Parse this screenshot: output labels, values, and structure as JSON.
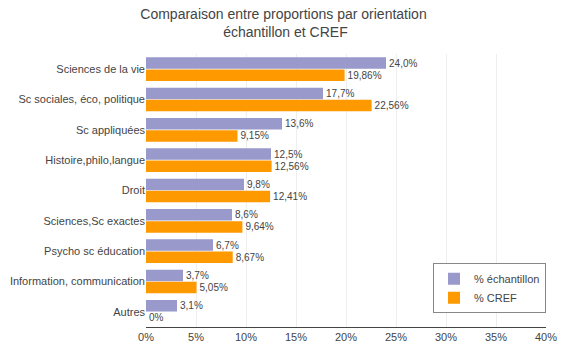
{
  "chart_data": {
    "type": "bar",
    "orientation": "horizontal",
    "title": "Comparaison entre proportions par orientation\n échantillon et CREF",
    "categories": [
      "Sciences de la vie",
      "Sc sociales, éco, politique",
      "Sc appliquées",
      "Histoire,philo,langue",
      "Droit",
      "Sciences,Sc exactes",
      "Psycho sc éducation",
      "Information, communication",
      "Autres"
    ],
    "series": [
      {
        "name": "% échantillon",
        "color": "#9999CC",
        "values": [
          24.0,
          17.7,
          13.6,
          12.5,
          9.8,
          8.6,
          6.7,
          3.7,
          3.1
        ],
        "value_labels": [
          "24,0%",
          "17,7%",
          "13,6%",
          "12,5%",
          "9,8%",
          "8,6%",
          "6,7%",
          "3,7%",
          "3,1%"
        ]
      },
      {
        "name": "% CREF",
        "color": "#FF9900",
        "values": [
          19.86,
          22.56,
          9.15,
          12.56,
          12.41,
          9.64,
          8.67,
          5.05,
          0.0
        ],
        "value_labels": [
          "19,86%",
          "22,56%",
          "9,15%",
          "12,56%",
          "12,41%",
          "9,64%",
          "8,67%",
          "5,05%",
          "0%"
        ]
      }
    ],
    "xlim": [
      0,
      40
    ],
    "xticks": [
      {
        "value": 0,
        "label": "0%"
      },
      {
        "value": 5,
        "label": "5%"
      },
      {
        "value": 10,
        "label": "10%"
      },
      {
        "value": 15,
        "label": "15%"
      },
      {
        "value": 20,
        "label": "20%"
      },
      {
        "value": 25,
        "label": "25%"
      },
      {
        "value": 30,
        "label": "30%"
      },
      {
        "value": 35,
        "label": "35%"
      },
      {
        "value": 40,
        "label": "40%"
      }
    ],
    "grid": true,
    "legend": "lower right",
    "data_labels": true
  }
}
